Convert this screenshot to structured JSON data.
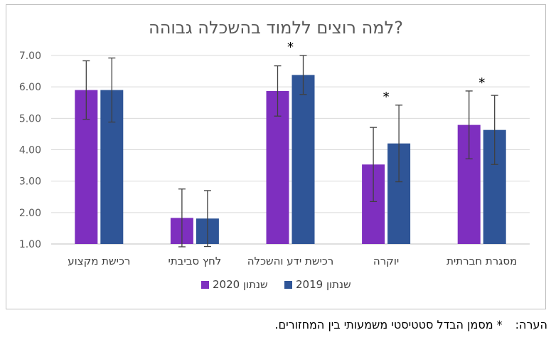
{
  "chart_data": {
    "type": "bar",
    "title": "למה רוצים ללמוד בהשכלה גבוהה?",
    "categories": [
      "רכישת מקצוע",
      "לחץ סביבתי",
      "רכישת ידע והשכלה",
      "יוקרה",
      "מסגרת חברתית"
    ],
    "series": [
      {
        "name": "שנתון 2020",
        "color": "#7e2fbf",
        "values": [
          5.9,
          1.83,
          5.87,
          3.53,
          4.79
        ],
        "errors": [
          0.93,
          0.92,
          0.8,
          1.18,
          1.08
        ]
      },
      {
        "name": "שנתון 2019",
        "color": "#2f5597",
        "values": [
          5.9,
          1.81,
          6.38,
          4.2,
          4.63
        ],
        "errors": [
          1.02,
          0.89,
          0.62,
          1.22,
          1.1
        ]
      }
    ],
    "significant_marker": "*",
    "significant": [
      false,
      false,
      true,
      true,
      true
    ],
    "ylim": [
      1,
      7
    ],
    "yticks": [
      "1.00",
      "2.00",
      "3.00",
      "4.00",
      "5.00",
      "6.00",
      "7.00"
    ],
    "gridlines": true,
    "legend_position": "bottom"
  },
  "note": {
    "label": "הערה:",
    "text": "* מסמן הבדל סטטיסטי משמעותי בין המחזורים."
  }
}
